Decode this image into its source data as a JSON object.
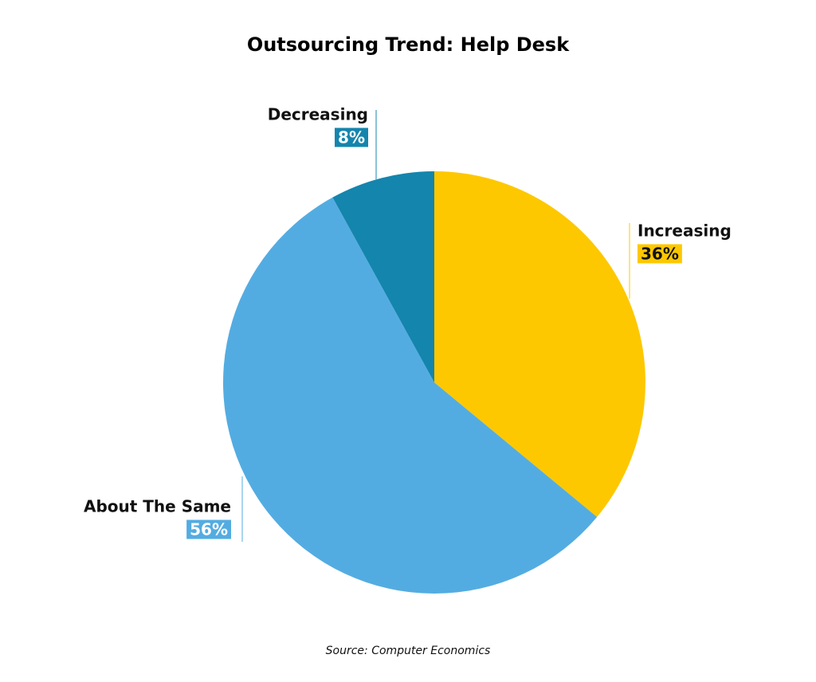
{
  "chart_data": {
    "type": "pie",
    "title": "Outsourcing Trend: Help Desk",
    "categories": [
      "Increasing",
      "About The Same",
      "Decreasing"
    ],
    "values": [
      36,
      56,
      8
    ],
    "value_labels": [
      "36%",
      "56%",
      "8%"
    ],
    "colors": [
      "#fdc800",
      "#53ace1",
      "#1485ad"
    ],
    "source": "Source: Computer Economics"
  }
}
